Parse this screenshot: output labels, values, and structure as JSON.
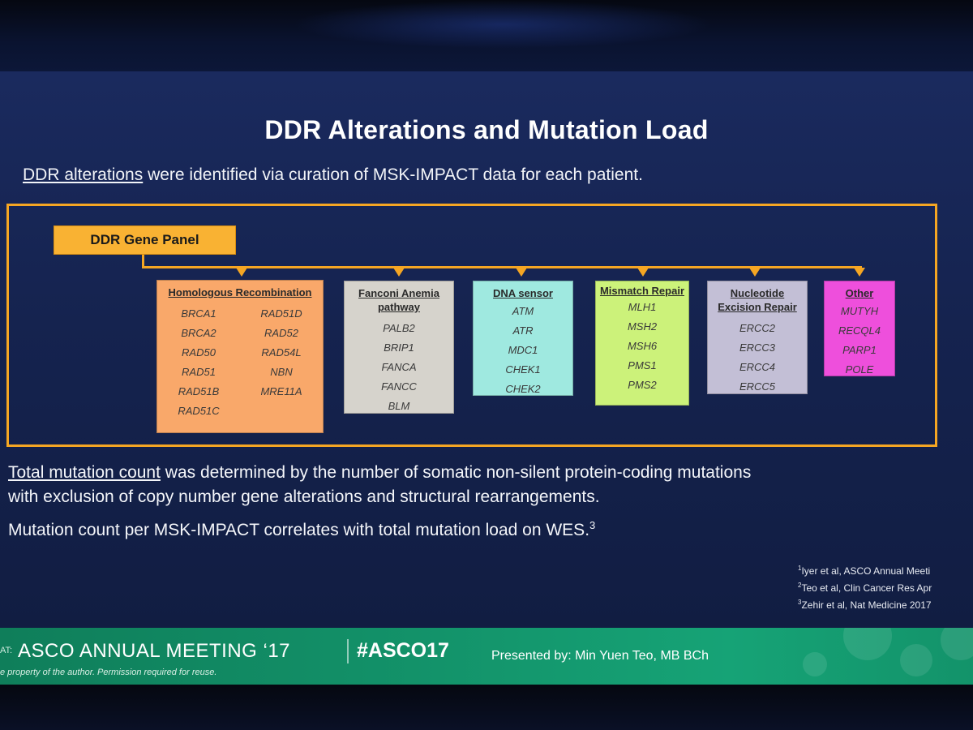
{
  "slide": {
    "title": "DDR Alterations and Mutation Load",
    "intro_underlined": "DDR alterations",
    "intro_rest": " were identified via curation of MSK-IMPACT data for each patient.",
    "gene_panel_label": "DDR Gene Panel",
    "categories": [
      {
        "title": "Homologous Recombination",
        "genes_left": [
          "BRCA1",
          "BRCA2",
          "RAD50",
          "RAD51",
          "RAD51B",
          "RAD51C"
        ],
        "genes_right": [
          "RAD51D",
          "RAD52",
          "RAD54L",
          "NBN",
          "MRE11A"
        ],
        "color": "#f9a86a"
      },
      {
        "title": "Fanconi Anemia pathway",
        "genes": [
          "PALB2",
          "BRIP1",
          "FANCA",
          "FANCC",
          "BLM"
        ],
        "color": "#d6d3cc"
      },
      {
        "title": "DNA sensor",
        "genes": [
          "ATM",
          "ATR",
          "MDC1",
          "CHEK1",
          "CHEK2"
        ],
        "color": "#9fe9e0"
      },
      {
        "title": "Mismatch Repair",
        "genes": [
          "MLH1",
          "MSH2",
          "MSH6",
          "PMS1",
          "PMS2"
        ],
        "color": "#ccf27a"
      },
      {
        "title": "Nucleotide Excision Repair",
        "genes": [
          "ERCC2",
          "ERCC3",
          "ERCC4",
          "ERCC5"
        ],
        "color": "#c3bfd6"
      },
      {
        "title": "Other",
        "genes": [
          "MUTYH",
          "RECQL4",
          "PARP1",
          "POLE"
        ],
        "color": "#ee4fdc"
      }
    ],
    "para1_underlined": "Total mutation count",
    "para1_rest_line1": " was determined by the number of somatic non-silent protein-coding mutations",
    "para1_line2": "with exclusion of copy number gene alterations and structural rearrangements.",
    "para2": "Mutation count per MSK-IMPACT correlates with total mutation load on WES.",
    "para2_sup": "3",
    "refs": [
      {
        "num": "1",
        "text": "Iyer et al, ASCO Annual Meeti"
      },
      {
        "num": "2",
        "text": "Teo et al, Clin Cancer Res Apr"
      },
      {
        "num": "3",
        "text": "Zehir et al, Nat Medicine 2017"
      }
    ]
  },
  "footer": {
    "prefix": "AT:",
    "meeting": "ASCO ANNUAL MEETING ‘17",
    "hashtag": "#ASCO17",
    "presenter": "Presented by: Min Yuen Teo, MB BCh",
    "copyright": "e property of the author. Permission required for reuse."
  },
  "colors": {
    "slide_bg": "#16254f",
    "frame": "#f5a623",
    "gene_panel": "#f9b233",
    "footer": "#13936a"
  }
}
